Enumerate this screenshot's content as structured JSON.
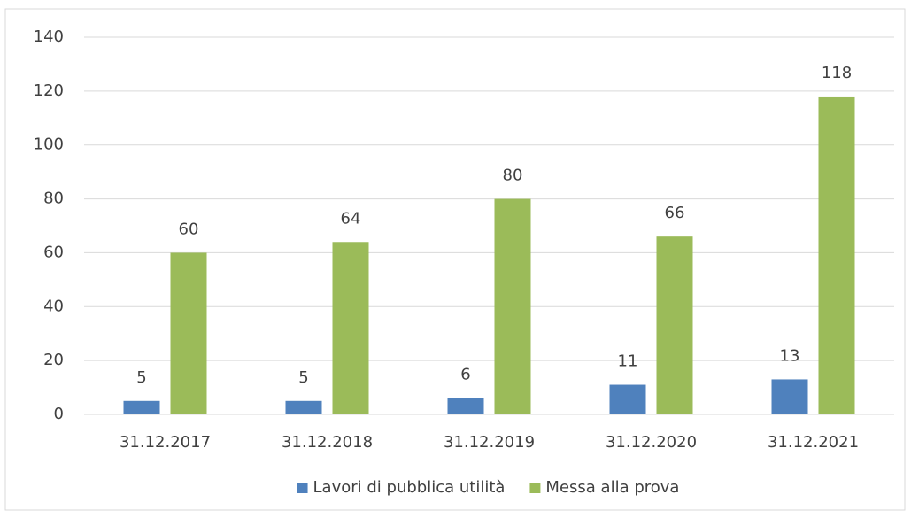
{
  "chart_data": {
    "type": "bar",
    "categories": [
      "31.12.2017",
      "31.12.2018",
      "31.12.2019",
      "31.12.2020",
      "31.12.2021"
    ],
    "series": [
      {
        "name": "Lavori di pubblica utilità",
        "color": "#4f81bd",
        "values": [
          5,
          5,
          6,
          11,
          13
        ]
      },
      {
        "name": "Messa alla prova",
        "color": "#9bbb59",
        "values": [
          60,
          64,
          80,
          66,
          118
        ]
      }
    ],
    "ylim": [
      0,
      140
    ],
    "yticks": [
      0,
      20,
      40,
      60,
      80,
      100,
      120,
      140
    ],
    "grid": true,
    "legend": "bottom"
  }
}
